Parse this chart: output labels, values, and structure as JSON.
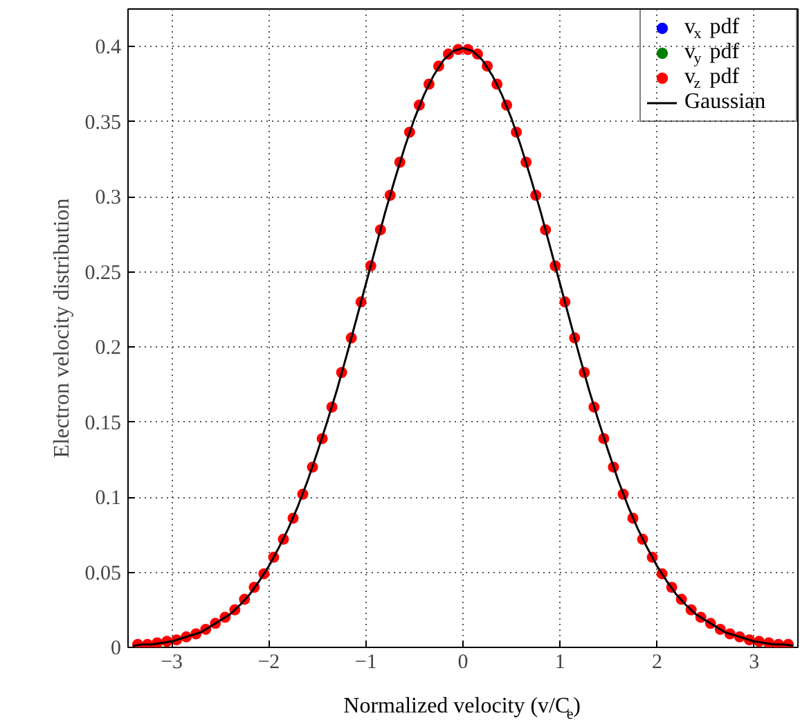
{
  "chart_data": {
    "type": "scatter",
    "xlabel": "Normalized velocity (v/C$_{e}$)",
    "ylabel": "Electron velocity distribution",
    "x": [
      -3.35,
      -3.25,
      -3.15,
      -3.05,
      -2.95,
      -2.85,
      -2.75,
      -2.65,
      -2.55,
      -2.45,
      -2.35,
      -2.25,
      -2.15,
      -2.05,
      -1.95,
      -1.85,
      -1.75,
      -1.65,
      -1.55,
      -1.45,
      -1.35,
      -1.25,
      -1.15,
      -1.05,
      -0.95,
      -0.85,
      -0.75,
      -0.65,
      -0.55,
      -0.45,
      -0.35,
      -0.25,
      -0.15,
      -0.05,
      0.05,
      0.15,
      0.25,
      0.35,
      0.45,
      0.55,
      0.65,
      0.75,
      0.85,
      0.95,
      1.05,
      1.15,
      1.25,
      1.35,
      1.45,
      1.55,
      1.65,
      1.75,
      1.85,
      1.95,
      2.05,
      2.15,
      2.25,
      2.35,
      2.45,
      2.55,
      2.65,
      2.75,
      2.85,
      2.95,
      3.05,
      3.15,
      3.25,
      3.35
    ],
    "series": [
      {
        "name": "v$_{x}$ pdf",
        "color": "#0000ff",
        "marker": "circle",
        "values": [
          null,
          null,
          null,
          null,
          null,
          null,
          null,
          null,
          null,
          null,
          null,
          null,
          null,
          null,
          null,
          null,
          null,
          null,
          null,
          null,
          null,
          null,
          null,
          null,
          null,
          null,
          null,
          null,
          null,
          null,
          null,
          null,
          null,
          null,
          null,
          null,
          null,
          null,
          null,
          null,
          null,
          null,
          null,
          null,
          null,
          null,
          null,
          null,
          null,
          null,
          null,
          null,
          null,
          null,
          null,
          null,
          null,
          null,
          null,
          null,
          null,
          null,
          null,
          null,
          null,
          null,
          null,
          null
        ]
      },
      {
        "name": "v$_{y}$ pdf",
        "color": "#008000",
        "marker": "circle",
        "values": [
          null,
          null,
          null,
          null,
          null,
          null,
          null,
          null,
          null,
          null,
          null,
          null,
          null,
          null,
          null,
          null,
          null,
          null,
          null,
          null,
          null,
          null,
          null,
          null,
          null,
          null,
          null,
          null,
          null,
          null,
          null,
          null,
          null,
          null,
          null,
          null,
          null,
          null,
          null,
          null,
          null,
          null,
          null,
          null,
          null,
          null,
          null,
          null,
          null,
          null,
          null,
          null,
          null,
          null,
          null,
          null,
          null,
          null,
          null,
          null,
          null,
          null,
          null,
          null,
          null,
          null,
          null,
          null
        ]
      },
      {
        "name": "v$_{z}$ pdf",
        "color": "#ff0000",
        "marker": "circle",
        "values": [
          0.002,
          0.002,
          0.003,
          0.004,
          0.005,
          0.007,
          0.009,
          0.012,
          0.016,
          0.02,
          0.025,
          0.032,
          0.04,
          0.049,
          0.06,
          0.072,
          0.086,
          0.102,
          0.12,
          0.139,
          0.16,
          0.183,
          0.206,
          0.23,
          0.254,
          0.278,
          0.301,
          0.323,
          0.343,
          0.361,
          0.375,
          0.387,
          0.395,
          0.398,
          0.398,
          0.395,
          0.387,
          0.375,
          0.361,
          0.343,
          0.323,
          0.301,
          0.278,
          0.254,
          0.23,
          0.206,
          0.183,
          0.16,
          0.139,
          0.12,
          0.102,
          0.086,
          0.072,
          0.06,
          0.049,
          0.04,
          0.032,
          0.025,
          0.02,
          0.016,
          0.012,
          0.009,
          0.007,
          0.005,
          0.004,
          0.003,
          0.002,
          0.002
        ]
      },
      {
        "name": "Gaussian",
        "type": "line",
        "marker": "none",
        "color": "#000000",
        "x": [
          -3.4,
          -3.3,
          -3.2,
          -3.1,
          -3.0,
          -2.9,
          -2.8,
          -2.7,
          -2.6,
          -2.5,
          -2.4,
          -2.3,
          -2.2,
          -2.1,
          -2.0,
          -1.9,
          -1.8,
          -1.7,
          -1.6,
          -1.5,
          -1.4,
          -1.3,
          -1.2,
          -1.1,
          -1.0,
          -0.9,
          -0.8,
          -0.7,
          -0.6,
          -0.5,
          -0.4,
          -0.3,
          -0.2,
          -0.1,
          0.0,
          0.1,
          0.2,
          0.3,
          0.4,
          0.5,
          0.6,
          0.7,
          0.8,
          0.9,
          1.0,
          1.1,
          1.2,
          1.3,
          1.4,
          1.5,
          1.6,
          1.7,
          1.8,
          1.9,
          2.0,
          2.1,
          2.2,
          2.3,
          2.4,
          2.5,
          2.6,
          2.7,
          2.8,
          2.9,
          3.0,
          3.1,
          3.2,
          3.3,
          3.4
        ],
        "values": [
          0.001,
          0.002,
          0.002,
          0.003,
          0.004,
          0.006,
          0.008,
          0.01,
          0.014,
          0.018,
          0.022,
          0.028,
          0.035,
          0.044,
          0.054,
          0.066,
          0.079,
          0.094,
          0.111,
          0.13,
          0.15,
          0.171,
          0.194,
          0.218,
          0.242,
          0.266,
          0.29,
          0.312,
          0.333,
          0.352,
          0.368,
          0.381,
          0.391,
          0.397,
          0.399,
          0.397,
          0.391,
          0.381,
          0.368,
          0.352,
          0.333,
          0.312,
          0.29,
          0.266,
          0.242,
          0.218,
          0.194,
          0.171,
          0.15,
          0.13,
          0.111,
          0.094,
          0.079,
          0.066,
          0.054,
          0.044,
          0.035,
          0.028,
          0.022,
          0.018,
          0.014,
          0.01,
          0.008,
          0.006,
          0.004,
          0.003,
          0.002,
          0.002,
          0.001
        ]
      }
    ],
    "xlim": [
      -3.45,
      3.45
    ],
    "xticks": [
      {
        "value": -3,
        "label": "−3"
      },
      {
        "value": -2,
        "label": "−2"
      },
      {
        "value": -1,
        "label": "−1"
      },
      0,
      1,
      2,
      3
    ],
    "ylim": [
      0,
      0.425
    ],
    "yticks": [
      0,
      0.05,
      0.1,
      0.15,
      0.2,
      0.25,
      0.3,
      0.35,
      0.4
    ],
    "grid": true,
    "legend": "top right"
  }
}
